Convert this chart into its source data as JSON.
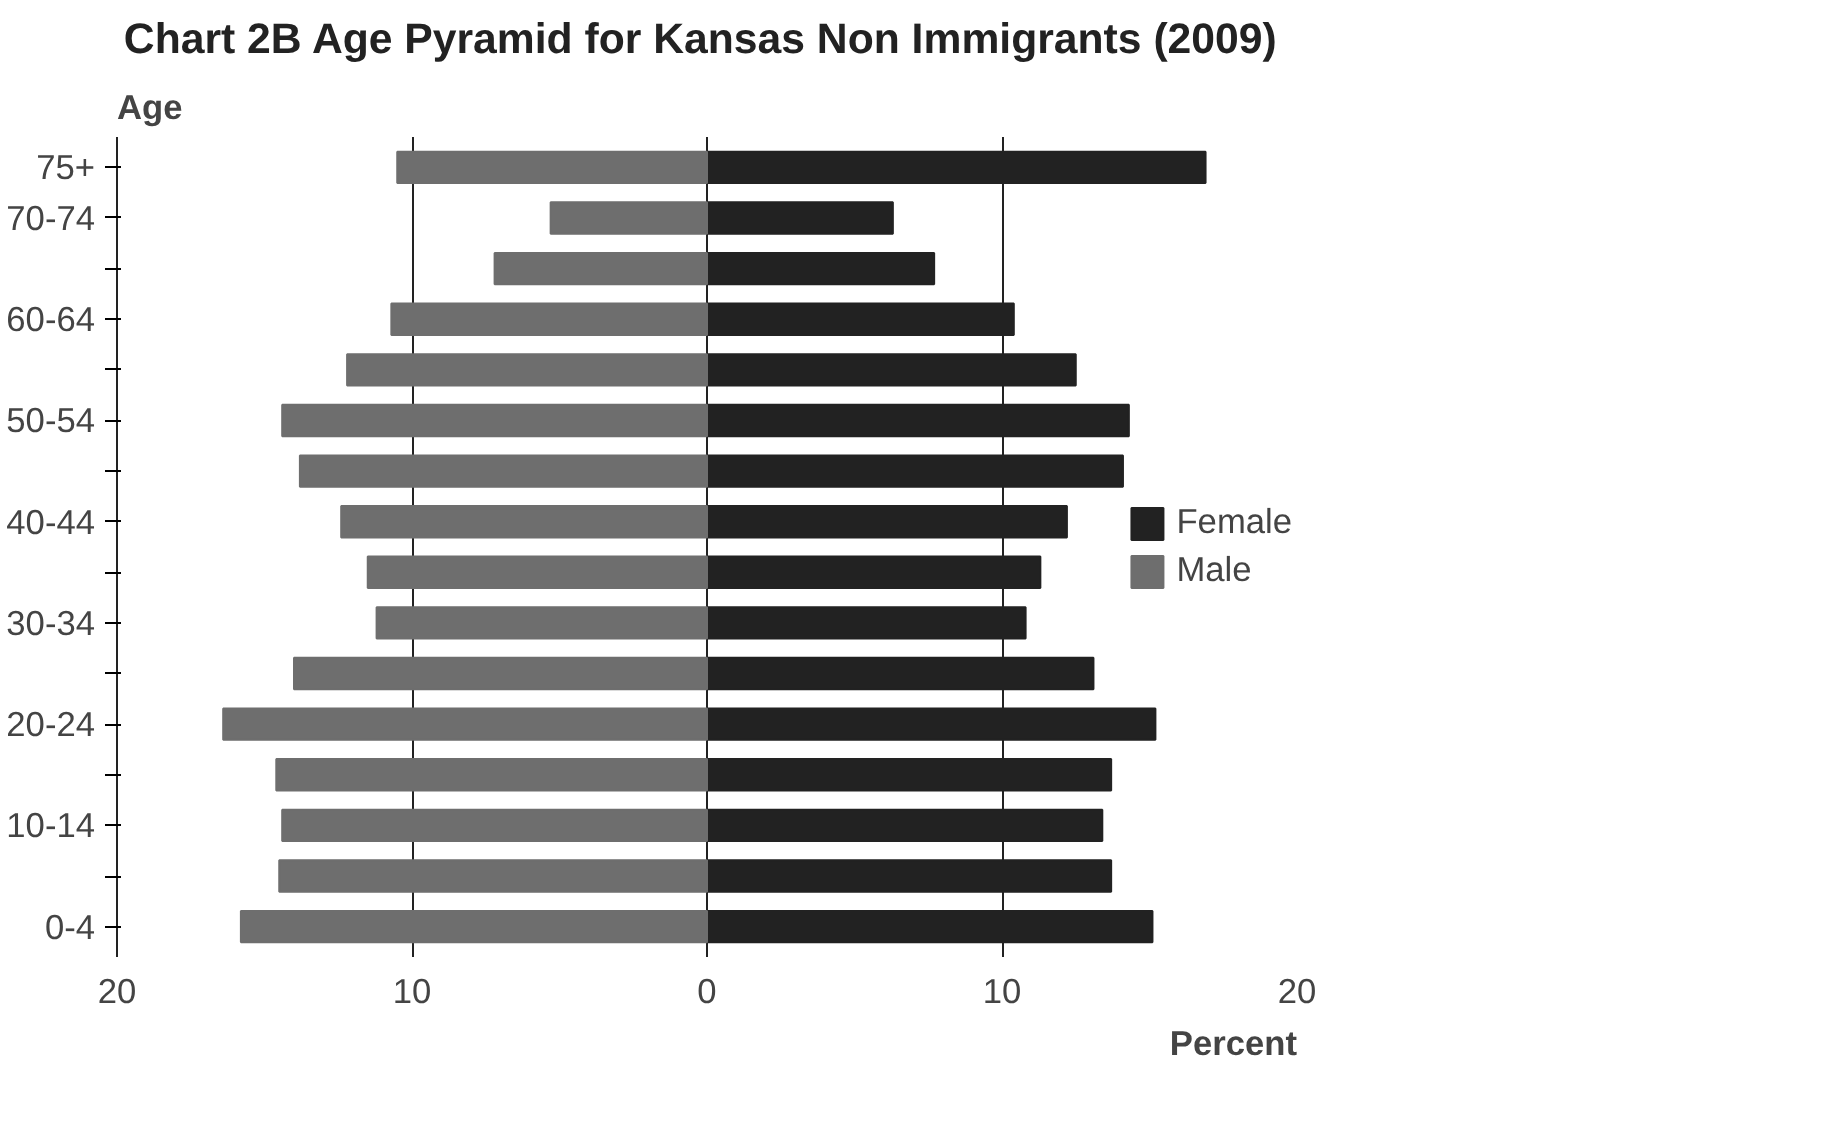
{
  "chart_data": {
    "type": "bar",
    "orientation": "horizontal",
    "title": "Chart 2B  Age Pyramid for Kansas Non Immigrants (2009)",
    "ylabel": "Age",
    "xlabel": "Percent",
    "categories": [
      "75+",
      "70-74",
      null,
      "60-64",
      null,
      "50-54",
      null,
      "40-44",
      null,
      "30-34",
      null,
      "20-24",
      null,
      "10-14",
      null,
      "0-4"
    ],
    "series": [
      {
        "name": "Female",
        "color": "#222222",
        "values": [
          16.9,
          6.3,
          7.7,
          10.4,
          12.5,
          14.3,
          14.1,
          12.2,
          11.3,
          10.8,
          13.1,
          15.2,
          13.7,
          13.4,
          13.7,
          15.1
        ]
      },
      {
        "name": "Male",
        "color": "#6e6e6e",
        "values": [
          -10.5,
          -5.3,
          -7.2,
          -10.7,
          -12.2,
          -14.4,
          -13.8,
          -12.4,
          -11.5,
          -11.2,
          -14.0,
          -16.4,
          -14.6,
          -14.4,
          -14.5,
          -15.8
        ]
      }
    ],
    "xlim": [
      -20,
      20
    ],
    "xticks": [
      {
        "value": -20,
        "label": "20"
      },
      {
        "value": -10,
        "label": "10"
      },
      0,
      10,
      20
    ],
    "grid": "x",
    "legend": "right",
    "stacked": true
  }
}
